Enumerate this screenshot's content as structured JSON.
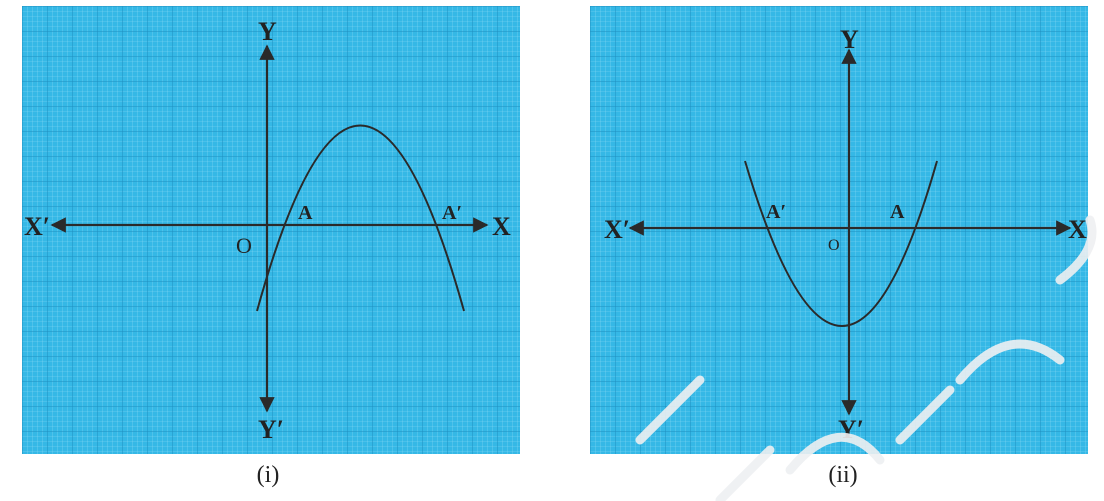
{
  "colors": {
    "grid_background": "#35b8e6",
    "grid_minor": "#8ad8f3",
    "grid_major": "#1f8fc0",
    "axis": "#2a2a2a",
    "curve": "#2a2a2a"
  },
  "figures": [
    {
      "caption": "(i)",
      "labels": {
        "x_pos": "X",
        "x_neg": "X′",
        "y_pos": "Y",
        "y_neg": "Y′",
        "origin": "O",
        "root1": "A",
        "root2": "A′"
      },
      "curve_shape": "downward parabola"
    },
    {
      "caption": "(ii)",
      "labels": {
        "x_pos": "X",
        "x_neg": "X′",
        "y_pos": "Y",
        "y_neg": "Y′",
        "origin": "O",
        "root1": "A′",
        "root2": "A"
      },
      "curve_shape": "upward parabola"
    }
  ]
}
